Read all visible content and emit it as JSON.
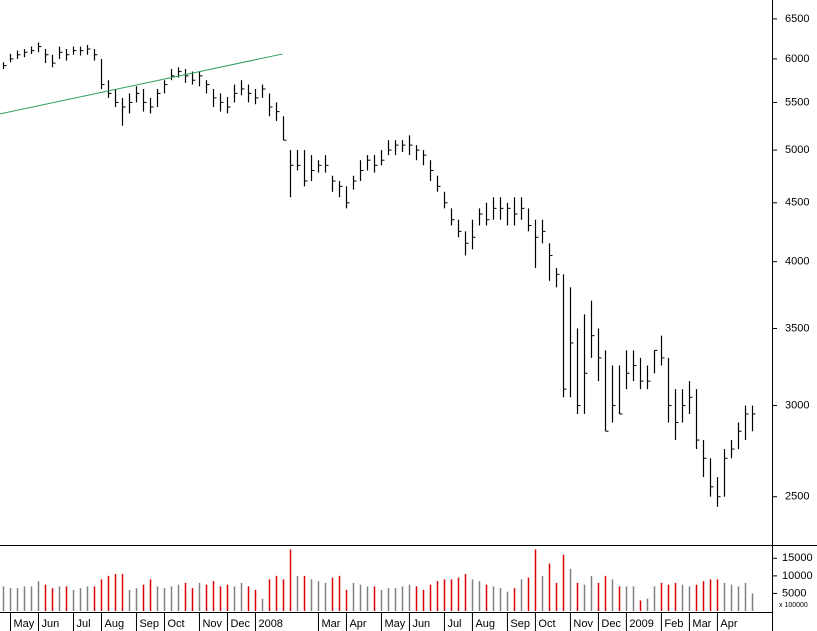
{
  "chart_data": {
    "type": "ohlc",
    "log_y": true,
    "bar_color": "#000000",
    "x": [
      0,
      1,
      2,
      3,
      4,
      5,
      6,
      7,
      8,
      9,
      10,
      11,
      12,
      13,
      14,
      15,
      16,
      17,
      18,
      19,
      20,
      21,
      22,
      23,
      24,
      25,
      26,
      27,
      28,
      29,
      30,
      31,
      32,
      33,
      34,
      35,
      36,
      37,
      38,
      39,
      40,
      41,
      42,
      43,
      44,
      45,
      46,
      47,
      48,
      49,
      50,
      51,
      52,
      53,
      54,
      55,
      56,
      57,
      58,
      59,
      60,
      61,
      62,
      63,
      64,
      65,
      66,
      67,
      68,
      69,
      70,
      71,
      72,
      73,
      74,
      75,
      76,
      77,
      78,
      79,
      80,
      81,
      82,
      83,
      84,
      85,
      86,
      87,
      88,
      89,
      90,
      91,
      92,
      93,
      94,
      95,
      96,
      97,
      98,
      99,
      100,
      101,
      102,
      103,
      104,
      105,
      106,
      107
    ],
    "high": [
      5960,
      6060,
      6100,
      6120,
      6150,
      6200,
      6120,
      6050,
      6150,
      6120,
      6150,
      6150,
      6170,
      6120,
      6000,
      5750,
      5650,
      5550,
      5600,
      5680,
      5650,
      5550,
      5650,
      5750,
      5880,
      5900,
      5880,
      5850,
      5850,
      5750,
      5650,
      5600,
      5560,
      5700,
      5750,
      5700,
      5650,
      5700,
      5600,
      5500,
      5350,
      5000,
      5000,
      5000,
      4950,
      4900,
      4950,
      4750,
      4700,
      4650,
      4750,
      4900,
      4950,
      4950,
      5000,
      5100,
      5100,
      5100,
      5150,
      5050,
      5000,
      4900,
      4750,
      4600,
      4450,
      4350,
      4250,
      4350,
      4450,
      4500,
      4550,
      4550,
      4500,
      4550,
      4550,
      4450,
      4350,
      4350,
      4150,
      3950,
      3900,
      3800,
      3500,
      3600,
      3700,
      3500,
      3350,
      3250,
      3250,
      3350,
      3350,
      3300,
      3250,
      3350,
      3450,
      3300,
      3100,
      3100,
      3150,
      3100,
      2800,
      2700,
      2600,
      2750,
      2800,
      2900,
      3000,
      3000
    ],
    "low": [
      5880,
      5960,
      6000,
      6020,
      6060,
      6080,
      5950,
      5900,
      6000,
      5980,
      6050,
      6040,
      6050,
      5980,
      5650,
      5550,
      5450,
      5250,
      5380,
      5500,
      5400,
      5380,
      5450,
      5600,
      5750,
      5780,
      5720,
      5700,
      5680,
      5600,
      5450,
      5400,
      5380,
      5500,
      5580,
      5500,
      5480,
      5550,
      5350,
      5300,
      5100,
      4550,
      4800,
      4650,
      4700,
      4780,
      4780,
      4600,
      4550,
      4450,
      4620,
      4700,
      4800,
      4780,
      4850,
      4950,
      4950,
      4980,
      4950,
      4900,
      4850,
      4700,
      4600,
      4450,
      4300,
      4200,
      4050,
      4100,
      4300,
      4300,
      4350,
      4350,
      4300,
      4300,
      4350,
      4250,
      3950,
      4150,
      3850,
      3800,
      3050,
      3050,
      2950,
      2950,
      3300,
      3150,
      2850,
      2900,
      2950,
      3100,
      3150,
      3100,
      3100,
      3200,
      3250,
      2900,
      2800,
      2900,
      2950,
      2750,
      2600,
      2500,
      2450,
      2500,
      2700,
      2750,
      2800,
      2850
    ],
    "close": [
      5920,
      6000,
      6050,
      6080,
      6100,
      6150,
      6050,
      5950,
      6080,
      6050,
      6100,
      6100,
      6120,
      6050,
      5700,
      5600,
      5500,
      5450,
      5500,
      5600,
      5500,
      5450,
      5600,
      5700,
      5800,
      5850,
      5800,
      5750,
      5800,
      5700,
      5550,
      5500,
      5450,
      5600,
      5650,
      5600,
      5550,
      5650,
      5450,
      5400,
      5100,
      4850,
      4850,
      4700,
      4800,
      4850,
      4850,
      4700,
      4650,
      4500,
      4700,
      4800,
      4900,
      4850,
      4900,
      5000,
      5050,
      5050,
      5050,
      5000,
      4950,
      4800,
      4650,
      4500,
      4350,
      4250,
      4150,
      4200,
      4400,
      4350,
      4450,
      4450,
      4450,
      4400,
      4450,
      4300,
      4200,
      4250,
      4050,
      3900,
      3100,
      3400,
      3000,
      3200,
      3450,
      3300,
      2850,
      3000,
      2950,
      3200,
      3250,
      3150,
      3150,
      3350,
      3300,
      3000,
      2900,
      3000,
      3050,
      2800,
      2700,
      2550,
      2500,
      2700,
      2750,
      2850,
      2950,
      2950
    ],
    "xlim": [
      -0.5,
      109.8
    ],
    "xticks": [
      {
        "value": 1,
        "label": "May"
      },
      {
        "value": 5,
        "label": "Jun"
      },
      {
        "value": 10,
        "label": "Jul"
      },
      {
        "value": 14,
        "label": "Aug"
      },
      {
        "value": 19,
        "label": "Sep"
      },
      {
        "value": 23,
        "label": "Oct"
      },
      {
        "value": 28,
        "label": "Nov"
      },
      {
        "value": 32,
        "label": "Dec"
      },
      {
        "value": 36,
        "label": "2008"
      },
      {
        "value": 45,
        "label": "Mar"
      },
      {
        "value": 49,
        "label": "Apr"
      },
      {
        "value": 54,
        "label": "May"
      },
      {
        "value": 58,
        "label": "Jun"
      },
      {
        "value": 63,
        "label": "Jul"
      },
      {
        "value": 67,
        "label": "Aug"
      },
      {
        "value": 72,
        "label": "Sep"
      },
      {
        "value": 76,
        "label": "Oct"
      },
      {
        "value": 81,
        "label": "Nov"
      },
      {
        "value": 85,
        "label": "Dec"
      },
      {
        "value": 89,
        "label": "2009"
      },
      {
        "value": 94,
        "label": "Feb"
      },
      {
        "value": 98,
        "label": "Mar"
      },
      {
        "value": 102,
        "label": "Apr"
      }
    ],
    "ylim": [
      2270,
      6750
    ],
    "yticks": [
      2500,
      3000,
      3500,
      4000,
      4500,
      5000,
      5500,
      6000,
      6500
    ],
    "trendline": {
      "color": "#2e9e5e",
      "x": [
        -0.5,
        39.9
      ],
      "values": [
        5375,
        6060
      ]
    },
    "volume": {
      "label": "x 100000",
      "up_color": "#808080",
      "down_color": "#dd0000",
      "ylim": [
        0,
        18500
      ],
      "yticks": [
        5000,
        10000,
        15000
      ],
      "values": [
        7000,
        6500,
        6500,
        7000,
        7000,
        8500,
        7500,
        6500,
        7000,
        7000,
        6000,
        6500,
        7000,
        7000,
        9000,
        10000,
        10500,
        10500,
        6000,
        6500,
        7500,
        9000,
        7000,
        6500,
        7000,
        7500,
        8000,
        6500,
        8000,
        7500,
        8500,
        7000,
        7500,
        7000,
        8000,
        7000,
        6000,
        3500,
        9000,
        10000,
        9000,
        17500,
        10000,
        10000,
        9000,
        8500,
        8000,
        9500,
        10000,
        6000,
        8000,
        7500,
        7000,
        7000,
        6000,
        6500,
        6500,
        7000,
        7500,
        7000,
        6000,
        7500,
        8500,
        9000,
        9000,
        9500,
        10500,
        9000,
        8500,
        7500,
        7000,
        6500,
        5500,
        6500,
        9000,
        9500,
        17500,
        10000,
        13500,
        8000,
        16000,
        12000,
        8000,
        7500,
        10000,
        8000,
        10000,
        9000,
        7000,
        7000,
        7000,
        3000,
        3500,
        7000,
        8000,
        7500,
        8000,
        7500,
        7000,
        7500,
        8500,
        9000,
        9000,
        8000,
        7500,
        7000,
        8000,
        5000
      ]
    }
  }
}
